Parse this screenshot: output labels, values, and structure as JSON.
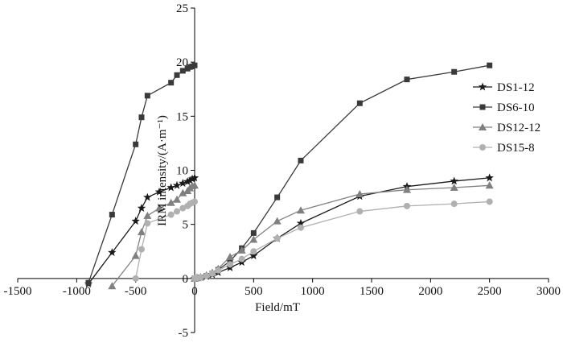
{
  "chart_data": {
    "type": "scatter",
    "title": "",
    "xlabel": "Field/mT",
    "ylabel": "IRM intensity/(A·m⁻¹)",
    "xlim": [
      -1500,
      3000
    ],
    "ylim": [
      -5,
      25
    ],
    "x_ticks": [
      "-1500",
      "-1000",
      "-500",
      "0",
      "500",
      "1000",
      "1500",
      "2000",
      "2500",
      "3000"
    ],
    "y_ticks": [
      "-5",
      "0",
      "5",
      "10",
      "15",
      "20",
      "25"
    ],
    "grid": false,
    "legend_position": "right",
    "series": [
      {
        "name": "DS1-12",
        "marker": "star",
        "color": "#1a1a1a",
        "points": [
          [
            0,
            0.0
          ],
          [
            20,
            0.05
          ],
          [
            50,
            0.1
          ],
          [
            100,
            0.2
          ],
          [
            150,
            0.35
          ],
          [
            200,
            0.55
          ],
          [
            300,
            1.0
          ],
          [
            400,
            1.5
          ],
          [
            500,
            2.1
          ],
          [
            700,
            3.7
          ],
          [
            900,
            5.1
          ],
          [
            1400,
            7.6
          ],
          [
            1800,
            8.5
          ],
          [
            2200,
            9.0
          ],
          [
            2500,
            9.3
          ]
        ]
      },
      {
        "name": "DS6-10",
        "marker": "square",
        "color": "#3a3a3a",
        "points": [
          [
            0,
            0.0
          ],
          [
            20,
            0.05
          ],
          [
            50,
            0.1
          ],
          [
            100,
            0.25
          ],
          [
            150,
            0.45
          ],
          [
            200,
            0.8
          ],
          [
            300,
            1.6
          ],
          [
            400,
            2.8
          ],
          [
            500,
            4.2
          ],
          [
            700,
            7.5
          ],
          [
            900,
            10.9
          ],
          [
            1400,
            16.2
          ],
          [
            1800,
            18.4
          ],
          [
            2200,
            19.1
          ],
          [
            2500,
            19.7
          ]
        ]
      },
      {
        "name": "DS12-12",
        "marker": "triangle",
        "color": "#808080",
        "points": [
          [
            0,
            0.0
          ],
          [
            20,
            0.05
          ],
          [
            50,
            0.12
          ],
          [
            100,
            0.3
          ],
          [
            150,
            0.55
          ],
          [
            200,
            0.9
          ],
          [
            300,
            2.0
          ],
          [
            400,
            2.6
          ],
          [
            500,
            3.6
          ],
          [
            700,
            5.3
          ],
          [
            900,
            6.3
          ],
          [
            1400,
            7.8
          ],
          [
            1800,
            8.2
          ],
          [
            2200,
            8.4
          ],
          [
            2500,
            8.6
          ]
        ]
      },
      {
        "name": "DS15-8",
        "marker": "circle",
        "color": "#b0b0b0",
        "points": [
          [
            0,
            0.0
          ],
          [
            20,
            0.05
          ],
          [
            50,
            0.1
          ],
          [
            100,
            0.25
          ],
          [
            150,
            0.45
          ],
          [
            200,
            0.75
          ],
          [
            300,
            1.3
          ],
          [
            400,
            1.8
          ],
          [
            500,
            2.5
          ],
          [
            700,
            3.7
          ],
          [
            900,
            4.7
          ],
          [
            1400,
            6.2
          ],
          [
            1800,
            6.7
          ],
          [
            2200,
            6.9
          ],
          [
            2500,
            7.1
          ]
        ]
      }
    ],
    "backfield_series": [
      {
        "name": "DS1-12",
        "points": [
          [
            0,
            9.3
          ],
          [
            -20,
            9.2
          ],
          [
            -40,
            9.05
          ],
          [
            -60,
            8.95
          ],
          [
            -100,
            8.8
          ],
          [
            -150,
            8.6
          ],
          [
            -200,
            8.4
          ],
          [
            -300,
            8.0
          ],
          [
            -400,
            7.5
          ],
          [
            -450,
            6.5
          ],
          [
            -500,
            5.3
          ],
          [
            -700,
            2.4
          ],
          [
            -900,
            -0.5
          ]
        ]
      },
      {
        "name": "DS6-10",
        "points": [
          [
            0,
            19.7
          ],
          [
            -20,
            19.6
          ],
          [
            -40,
            19.55
          ],
          [
            -60,
            19.4
          ],
          [
            -100,
            19.2
          ],
          [
            -150,
            18.8
          ],
          [
            -200,
            18.1
          ],
          [
            -400,
            16.9
          ],
          [
            -450,
            14.9
          ],
          [
            -500,
            12.4
          ],
          [
            -700,
            5.9
          ],
          [
            -900,
            -0.4
          ]
        ]
      },
      {
        "name": "DS12-12",
        "points": [
          [
            0,
            8.6
          ],
          [
            -20,
            8.55
          ],
          [
            -40,
            8.35
          ],
          [
            -60,
            8.1
          ],
          [
            -100,
            7.9
          ],
          [
            -150,
            7.3
          ],
          [
            -200,
            7.0
          ],
          [
            -300,
            6.5
          ],
          [
            -400,
            5.8
          ],
          [
            -450,
            4.3
          ],
          [
            -500,
            2.1
          ],
          [
            -700,
            -0.7
          ]
        ]
      },
      {
        "name": "DS15-8",
        "points": [
          [
            0,
            7.1
          ],
          [
            -20,
            7.0
          ],
          [
            -40,
            6.9
          ],
          [
            -60,
            6.7
          ],
          [
            -100,
            6.5
          ],
          [
            -150,
            6.2
          ],
          [
            -200,
            5.9
          ],
          [
            -400,
            5.1
          ],
          [
            -450,
            2.7
          ],
          [
            -500,
            0.0
          ]
        ]
      }
    ]
  }
}
